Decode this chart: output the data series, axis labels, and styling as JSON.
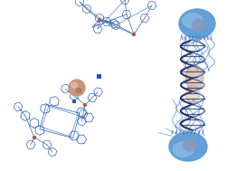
{
  "background_color": "#ffffff",
  "fig_width": 2.61,
  "fig_height": 1.89,
  "dpi": 100,
  "iron_color": "#b05540",
  "ligand_color": "#3366bb",
  "halide_color": "#2244aa",
  "jellyfish_bell_top_color": "#5b9bd5",
  "jellyfish_bell_bottom_color": "#4a8fce",
  "jellyfish_highlight": "#a8c8f0",
  "jellyfish_dark": "#1a3a7a",
  "jellyfish_mid": "#3a6ab0",
  "guest_sphere_color": "#c9967a",
  "guest_sphere_hi": "#e8c4b0",
  "halide_sq_color": "#2255cc",
  "tentacle_color": "#4477cc",
  "helix_color": "#2244aa",
  "stripe_color": "#1a2a6a",
  "inner_oval_color": "#c9967a"
}
